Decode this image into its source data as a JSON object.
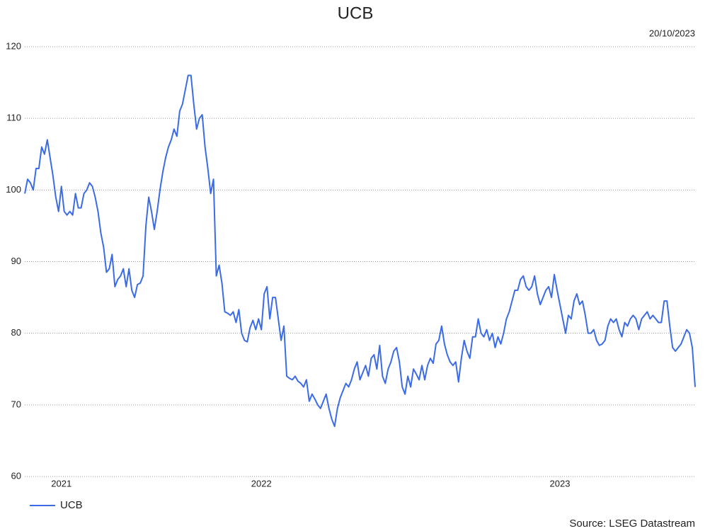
{
  "chart_data": {
    "type": "line",
    "title": "UCB",
    "annotation": "20/10/2023",
    "source": "Source: LSEG Datastream",
    "categories": [
      null,
      null,
      null,
      null,
      null,
      null,
      null,
      null,
      null,
      null,
      null,
      null,
      null,
      "2021",
      null,
      null,
      null,
      null,
      null,
      null,
      null,
      null,
      null,
      null,
      null,
      null,
      null,
      null,
      null,
      null,
      null,
      null,
      null,
      null,
      null,
      null,
      null,
      null,
      null,
      null,
      null,
      null,
      null,
      null,
      null,
      null,
      null,
      null,
      null,
      null,
      null,
      null,
      null,
      null,
      null,
      null,
      null,
      null,
      null,
      null,
      null,
      null,
      null,
      null,
      null,
      null,
      null,
      null,
      null,
      null,
      null,
      null,
      null,
      null,
      null,
      null,
      null,
      null,
      null,
      null,
      null,
      null,
      null,
      null,
      "2022",
      null,
      null,
      null,
      null,
      null,
      null,
      null,
      null,
      null,
      null,
      null,
      null,
      null,
      null,
      null,
      null,
      null,
      null,
      null,
      null,
      null,
      null,
      null,
      null,
      null,
      null,
      null,
      null,
      null,
      null,
      null,
      null,
      null,
      null,
      null,
      null,
      null,
      null,
      null,
      null,
      null,
      null,
      null,
      null,
      null,
      null,
      null,
      null,
      null,
      null,
      null,
      null,
      null,
      null,
      null,
      null,
      null,
      null,
      null,
      null,
      null,
      null,
      null,
      null,
      null,
      null,
      null,
      null,
      null,
      null,
      null,
      null,
      null,
      null,
      null,
      null,
      null,
      null,
      null,
      null,
      null,
      null,
      null,
      null,
      null,
      null,
      null,
      null,
      null,
      null,
      null,
      null,
      null,
      null,
      null,
      null,
      null,
      null,
      null,
      null,
      null,
      null,
      null,
      null,
      null,
      "2023",
      null,
      null,
      null,
      null,
      null,
      null,
      null,
      null,
      null,
      null,
      null,
      null,
      null,
      null,
      null,
      null,
      null,
      null,
      null,
      null,
      null,
      null,
      null,
      null,
      null,
      null,
      null,
      null,
      null,
      null,
      null,
      null,
      null,
      null,
      null,
      null,
      null,
      null,
      null,
      null,
      null,
      null,
      null,
      null,
      null,
      null,
      null,
      null
    ],
    "series": [
      {
        "name": "UCB",
        "color": "#3b6be6",
        "values": [
          99.5,
          101.5,
          101,
          100,
          103,
          103,
          106,
          105,
          107,
          104.5,
          102,
          99,
          97,
          100.5,
          97,
          96.5,
          97,
          96.5,
          99.5,
          97.5,
          97.5,
          99.5,
          100,
          101,
          100.5,
          99,
          97,
          94,
          92,
          88.5,
          89,
          91,
          86.5,
          87.5,
          88,
          89,
          86.5,
          89,
          86,
          85,
          86.8,
          87,
          88,
          95,
          99,
          97,
          94.5,
          97,
          100,
          102.5,
          104.5,
          106,
          107,
          108.5,
          107.5,
          111,
          112,
          114,
          116,
          116,
          112,
          108.5,
          110,
          110.5,
          106,
          103,
          99.5,
          101.5,
          88,
          89.5,
          87,
          83,
          82.8,
          82.5,
          83,
          81.5,
          83.3,
          80,
          79,
          78.8,
          80.8,
          81.8,
          80.5,
          82,
          80.5,
          85.5,
          86.5,
          82,
          85,
          85,
          82,
          79,
          81,
          74,
          73.7,
          73.5,
          74,
          73.3,
          73,
          72.5,
          73.5,
          70.5,
          71.5,
          70.8,
          70,
          69.5,
          70.5,
          71.5,
          69.5,
          68,
          67,
          69.5,
          71,
          72,
          73,
          72.5,
          73.5,
          75,
          76,
          73.5,
          74.5,
          75.5,
          74,
          76.5,
          77,
          75,
          78.3,
          74,
          73,
          75,
          76,
          77.5,
          78,
          76,
          72.5,
          71.5,
          74,
          72.5,
          75,
          74.3,
          73.5,
          75.5,
          73.5,
          75.5,
          76.5,
          75.8,
          78.5,
          79,
          81,
          78.5,
          77,
          76,
          75.5,
          76,
          73.2,
          76.5,
          79,
          77.5,
          76.5,
          79.5,
          79.5,
          82,
          80,
          79.5,
          80.5,
          79,
          80,
          78,
          79.5,
          78.5,
          80,
          82,
          83,
          84.5,
          86,
          86,
          87.5,
          88,
          86.5,
          86,
          86.5,
          88,
          85.5,
          84,
          85,
          86,
          86.5,
          85,
          88.2,
          86,
          84,
          82,
          80,
          82.5,
          82,
          84.5,
          85.5,
          84,
          84.5,
          82.5,
          80,
          80,
          80.5,
          79,
          78.3,
          78.5,
          79,
          81,
          82,
          81.5,
          82,
          80.5,
          79.5,
          81.5,
          81,
          82,
          82.5,
          82,
          80.5,
          82,
          82.5,
          83,
          82,
          82.5,
          82,
          81.5,
          81.5,
          84.5,
          84.5,
          81,
          78,
          77.5,
          78,
          78.5,
          79.5,
          80.5,
          80,
          78,
          72.5
        ]
      }
    ],
    "ylim": [
      60,
      120
    ],
    "yticks": [
      60,
      70,
      80,
      90,
      100,
      110,
      120
    ],
    "grid": true,
    "legend": "bottom-left"
  }
}
